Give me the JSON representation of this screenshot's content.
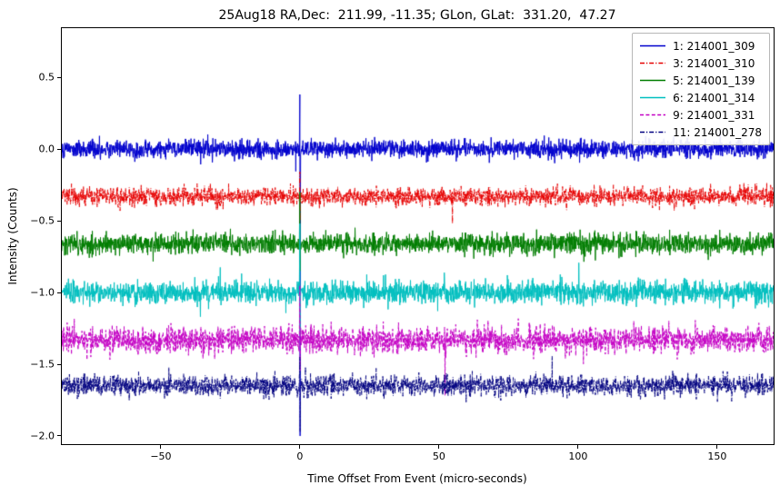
{
  "chart_data": {
    "type": "line",
    "title": "25Aug18 RA,Dec:  211.99, -11.35; GLon, GLat:  331.20,  47.27",
    "xlabel": "Time Offset From Event (micro-seconds)",
    "ylabel": "Intensity (Counts)",
    "xlim": [
      -85.6,
      170.3
    ],
    "ylim": [
      -2.057,
      0.842
    ],
    "grid": false,
    "legend_position": "upper right",
    "x_ticks": [
      {
        "value": -50,
        "label": "−50"
      },
      {
        "value": 0,
        "label": "0"
      },
      {
        "value": 50,
        "label": "50"
      },
      {
        "value": 100,
        "label": "100"
      },
      {
        "value": 150,
        "label": "150"
      }
    ],
    "y_ticks": [
      {
        "value": 0.5,
        "label": "0.5"
      },
      {
        "value": 0.0,
        "label": "0.0"
      },
      {
        "value": -0.5,
        "label": "−0.5"
      },
      {
        "value": -1.0,
        "label": "−1.0"
      },
      {
        "value": -1.5,
        "label": "−1.5"
      },
      {
        "value": -2.0,
        "label": "−2.0"
      }
    ],
    "n_points": 2800,
    "event_time": 0,
    "series": [
      {
        "name": "1: 214001_309",
        "color": "#0000cd",
        "linestyle": "solid",
        "baseline": 0.0,
        "noise_std": 0.03,
        "spike_max": 0.38,
        "spike_min": -2.0,
        "seed": 11
      },
      {
        "name": "3: 214001_310",
        "color": "#e60000",
        "linestyle": "dashdot",
        "baseline": -0.33,
        "noise_std": 0.03,
        "spike_max": -0.16,
        "spike_min": -0.5,
        "seed": 23
      },
      {
        "name": "5: 214001_139",
        "color": "#007d00",
        "linestyle": "solid",
        "baseline": -0.66,
        "noise_std": 0.035,
        "spike_max": -0.3,
        "spike_min": -0.85,
        "seed": 37
      },
      {
        "name": "6: 214001_314",
        "color": "#00bfbf",
        "linestyle": "solid",
        "baseline": -1.0,
        "noise_std": 0.038,
        "spike_max": -0.52,
        "spike_min": -1.3,
        "seed": 41
      },
      {
        "name": "9: 214001_331",
        "color": "#c400c4",
        "linestyle": "dashed",
        "baseline": -1.33,
        "noise_std": 0.045,
        "spike_max": -0.95,
        "spike_min": -1.55,
        "seed": 53
      },
      {
        "name": "11: 214001_278",
        "color": "#000080",
        "linestyle": "dashdot",
        "baseline": -1.65,
        "noise_std": 0.035,
        "spike_max": -1.45,
        "spike_min": -1.97,
        "seed": 67
      }
    ]
  }
}
